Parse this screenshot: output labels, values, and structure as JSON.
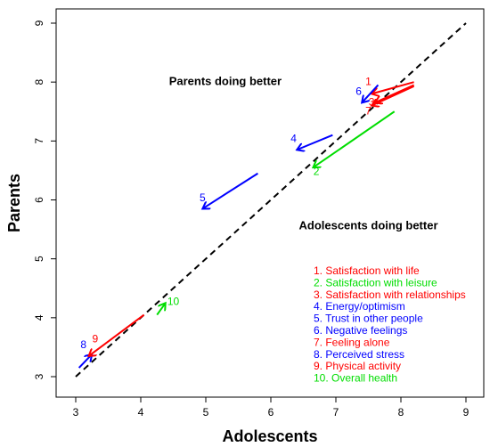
{
  "chart_data": {
    "type": "scatter",
    "title": "",
    "xlabel": "Adolescents",
    "ylabel": "Parents",
    "xlim": [
      3,
      9
    ],
    "ylim": [
      3,
      9
    ],
    "x_ticks": [
      3,
      4,
      5,
      6,
      7,
      8,
      9
    ],
    "y_ticks": [
      3,
      4,
      5,
      6,
      7,
      8,
      9
    ],
    "grid": false,
    "reference_line": {
      "from": [
        3,
        3
      ],
      "to": [
        9,
        9
      ],
      "style": "dashed"
    },
    "annotations": [
      {
        "text": "Parents doing better",
        "x": 5.3,
        "y": 7.95
      },
      {
        "text": "Adolescents doing better",
        "x": 7.5,
        "y": 5.5
      }
    ],
    "legend_position": "bottom-right",
    "series": [
      {
        "name": "1. Satisfaction with life",
        "label": "1",
        "color": "#ff0000",
        "from": [
          8.2,
          8.0
        ],
        "to": [
          7.55,
          7.8
        ],
        "label_at": [
          7.5,
          7.95
        ]
      },
      {
        "name": "2. Satisfaction with leisure",
        "label": "2",
        "color": "#00dd00",
        "from": [
          7.9,
          7.5
        ],
        "to": [
          6.65,
          6.55
        ],
        "label_at": [
          6.7,
          6.42
        ]
      },
      {
        "name": "3. Satisfaction with relationships",
        "label": "3",
        "color": "#ff0000",
        "from": [
          8.2,
          7.95
        ],
        "to": [
          7.6,
          7.65
        ],
        "label_at": [
          7.55,
          7.6
        ]
      },
      {
        "name": "4. Energy/optimism",
        "label": "4",
        "color": "#0000ff",
        "from": [
          6.95,
          7.1
        ],
        "to": [
          6.4,
          6.85
        ],
        "label_at": [
          6.35,
          6.98
        ]
      },
      {
        "name": "5. Trust in other people",
        "label": "5",
        "color": "#0000ff",
        "from": [
          5.8,
          6.45
        ],
        "to": [
          4.95,
          5.85
        ],
        "label_at": [
          4.95,
          5.98
        ]
      },
      {
        "name": "6. Negative feelings",
        "label": "6",
        "color": "#0000ff",
        "from": [
          7.65,
          7.95
        ],
        "to": [
          7.4,
          7.65
        ],
        "label_at": [
          7.35,
          7.78
        ]
      },
      {
        "name": "7. Feeling alone",
        "label": "7",
        "color": "#ff0000",
        "from": [
          8.2,
          7.93
        ],
        "to": [
          7.55,
          7.6
        ],
        "label_at": [
          7.5,
          7.45
        ]
      },
      {
        "name": "8. Perceived stress",
        "label": "8",
        "color": "#0000ff",
        "from": [
          3.05,
          3.15
        ],
        "to": [
          3.25,
          3.38
        ],
        "label_at": [
          3.12,
          3.48
        ]
      },
      {
        "name": "9. Physical activity",
        "label": "9",
        "color": "#ff0000",
        "from": [
          4.05,
          4.05
        ],
        "to": [
          3.2,
          3.35
        ],
        "label_at": [
          3.3,
          3.58
        ]
      },
      {
        "name": "10. Overall health",
        "label": "10",
        "color": "#00dd00",
        "from": [
          4.25,
          4.05
        ],
        "to": [
          4.38,
          4.25
        ],
        "label_at": [
          4.5,
          4.22
        ]
      }
    ]
  }
}
